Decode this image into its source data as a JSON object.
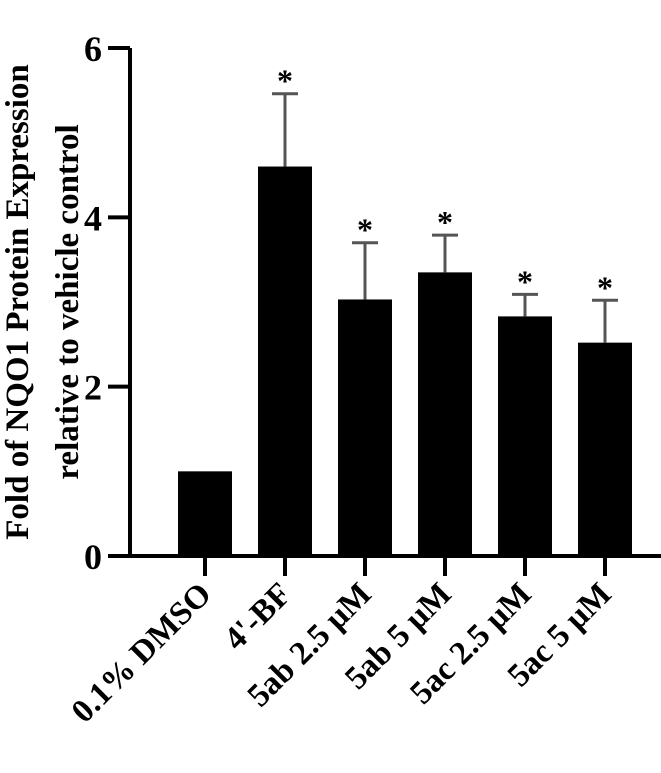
{
  "chart_data": {
    "type": "bar",
    "title": "",
    "xlabel": "",
    "ylabel_lines": [
      "Fold of NQO1 Protein Expression",
      "relative to vehicle control"
    ],
    "ylim": [
      0,
      6
    ],
    "yticks": [
      0,
      2,
      4,
      6
    ],
    "categories": [
      "0.1% DMSO",
      "4'-BF",
      "5ab 2.5 μM",
      "5ab 5 μM",
      "5ac 2.5 μM",
      "5ac 5 μM"
    ],
    "values": [
      1.0,
      4.6,
      3.03,
      3.35,
      2.83,
      2.52
    ],
    "errors": [
      0,
      0.86,
      0.67,
      0.44,
      0.26,
      0.5
    ],
    "significance": [
      "",
      "*",
      "*",
      "*",
      "*",
      "*"
    ],
    "bar_color": "#000000",
    "error_color": "#555555",
    "grid": false,
    "legend": "none"
  }
}
